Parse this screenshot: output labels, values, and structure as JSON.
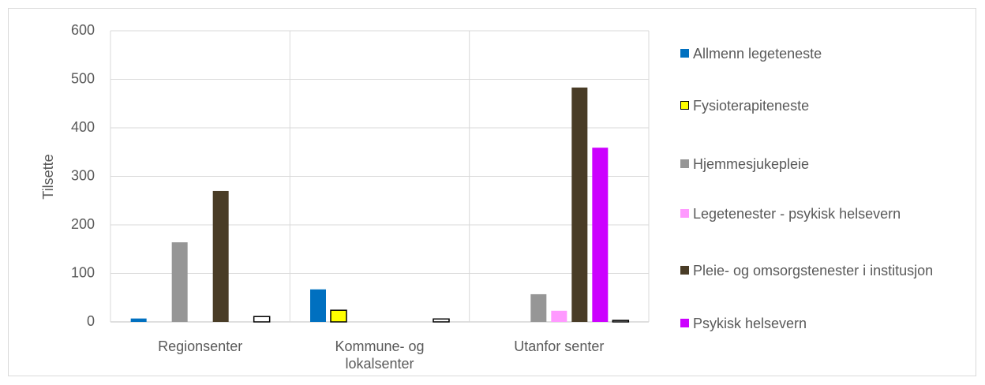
{
  "chart_data": {
    "type": "bar",
    "y_label": "Tilsette",
    "categories": [
      "Regionsenter",
      "Kommune- og lokalsenter",
      "Utanfor senter"
    ],
    "series": [
      {
        "name": "Allmenn legeteneste",
        "color": "#0070c0",
        "values": [
          7,
          67,
          0
        ]
      },
      {
        "name": "Fysioterapiteneste",
        "color": "#ffff00",
        "border": "#000000",
        "values": [
          0,
          24,
          0
        ]
      },
      {
        "name": "Hjemmesjukepleie",
        "color": "#969696",
        "values": [
          164,
          0,
          57
        ]
      },
      {
        "name": "Legetenester - psykisk helsevern",
        "color": "#ff99ff",
        "values": [
          0,
          0,
          23
        ]
      },
      {
        "name": "Pleie- og omsorgstenester i institusjon",
        "color": "#493c26",
        "values": [
          270,
          0,
          483
        ]
      },
      {
        "name": "Psykisk helsevern",
        "color": "#cc00ff",
        "values": [
          0,
          0,
          359
        ]
      },
      {
        "color": "#ffffff",
        "border": "#000000",
        "values": [
          11,
          6,
          3
        ]
      }
    ],
    "ylim": [
      0,
      600
    ],
    "yticks": [
      0,
      100,
      200,
      300,
      400,
      500,
      600
    ],
    "grid": true,
    "legend": "right"
  }
}
